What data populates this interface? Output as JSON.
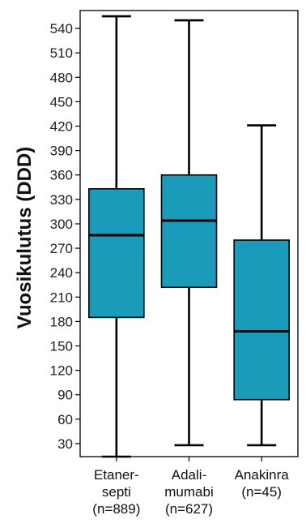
{
  "chart_data": {
    "type": "box",
    "ylabel": "Vuosikulutus (DDD)",
    "xlabel": "",
    "title": "",
    "ylim": [
      14,
      562
    ],
    "yticks": [
      30,
      60,
      90,
      120,
      150,
      180,
      210,
      240,
      270,
      300,
      330,
      360,
      390,
      420,
      450,
      480,
      510,
      540
    ],
    "grid": false,
    "box_color": "#1a9bb9",
    "categories": [
      {
        "lines": [
          "Etaner-",
          "septi",
          "(n=889)"
        ]
      },
      {
        "lines": [
          "Adali-",
          "mumabi",
          "(n=627)"
        ]
      },
      {
        "lines": [
          "Anakinra",
          "(n=45)"
        ]
      }
    ],
    "boxes": [
      {
        "whisker_low": 14,
        "q1": 185,
        "median": 286,
        "q3": 343,
        "whisker_high": 555
      },
      {
        "whisker_low": 28,
        "q1": 222,
        "median": 304,
        "q3": 360,
        "whisker_high": 550
      },
      {
        "whisker_low": 28,
        "q1": 84,
        "median": 168,
        "q3": 280,
        "whisker_high": 421
      }
    ]
  }
}
